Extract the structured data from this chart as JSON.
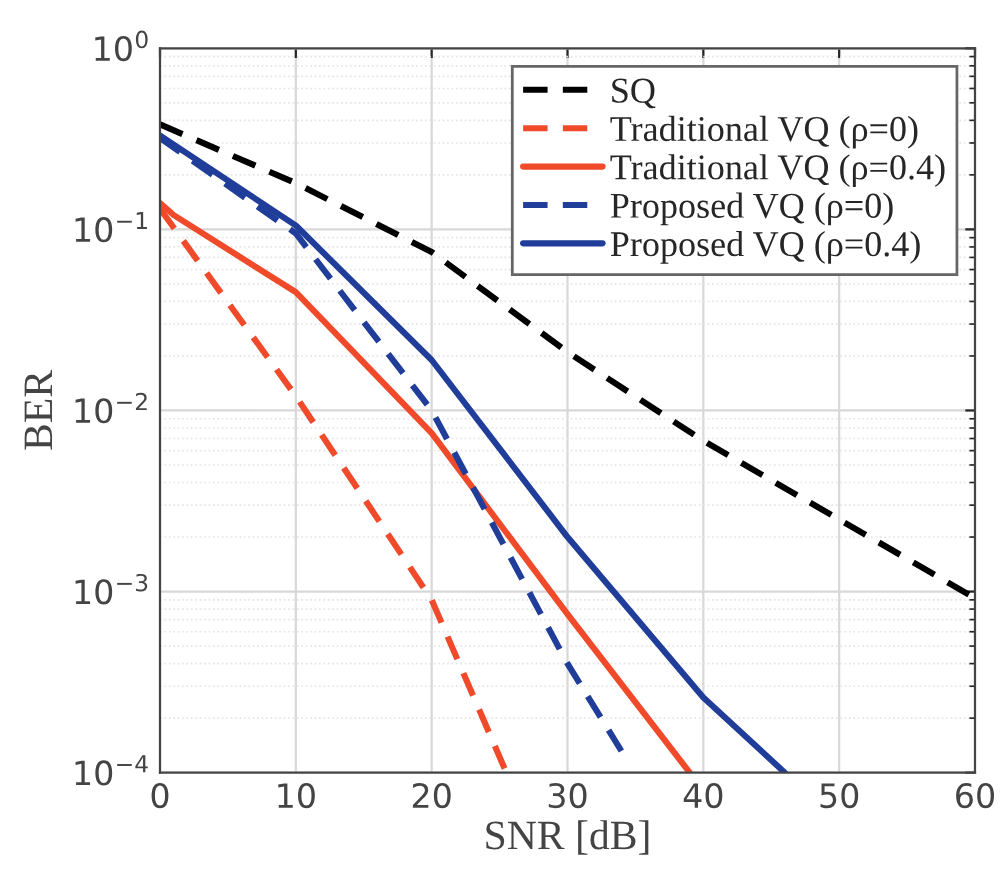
{
  "chart_data": {
    "type": "line",
    "xlabel": "SNR [dB]",
    "ylabel": "BER",
    "log": "y",
    "xlim": [
      0,
      60
    ],
    "xticks": [
      0,
      10,
      20,
      30,
      40,
      50,
      60
    ],
    "ylim": [
      0.0001,
      1
    ],
    "yticks": [
      {
        "value": 0.0001,
        "label": "10$^{−4}$"
      },
      {
        "value": 0.001,
        "label": "10$^{−3}$"
      },
      {
        "value": 0.01,
        "label": "10$^{−2}$"
      },
      {
        "value": 0.1,
        "label": "10$^{−1}$"
      },
      {
        "value": 1,
        "label": "10$^{0}$"
      }
    ],
    "grid": true,
    "legend": "top right",
    "marker": "none",
    "series": [
      {
        "name": "SQ",
        "color": "#000000",
        "line_style": "dashed",
        "x": [
          0,
          10,
          20,
          30,
          40,
          50,
          60
        ],
        "values": [
          0.38,
          0.18,
          0.075,
          0.021,
          0.0068,
          0.0025,
          0.00092
        ]
      },
      {
        "name": "Traditional VQ (ρ=0)",
        "color": "#f04a2a",
        "line_style": "dashed",
        "x": [
          0,
          10,
          20,
          25.5
        ],
        "values": [
          0.13,
          0.012,
          0.0009,
          0.0001
        ]
      },
      {
        "name": "Traditional VQ (ρ=0.4)",
        "color": "#f04a2a",
        "line_style": "solid",
        "x": [
          0,
          1,
          10,
          20,
          30,
          39
        ],
        "values": [
          0.14,
          0.12,
          0.045,
          0.0075,
          0.00075,
          0.0001
        ]
      },
      {
        "name": "Proposed VQ (ρ=0)",
        "color": "#1f3d99",
        "line_style": "dashed",
        "x": [
          0,
          10,
          20,
          30,
          34.3
        ],
        "values": [
          0.32,
          0.095,
          0.01,
          0.0004,
          0.00012
        ]
      },
      {
        "name": "Proposed VQ (ρ=0.4)",
        "color": "#1f3d99",
        "line_style": "solid",
        "x": [
          0,
          10,
          20,
          30,
          40,
          46
        ],
        "values": [
          0.33,
          0.105,
          0.019,
          0.002,
          0.00026,
          0.0001
        ]
      }
    ]
  }
}
